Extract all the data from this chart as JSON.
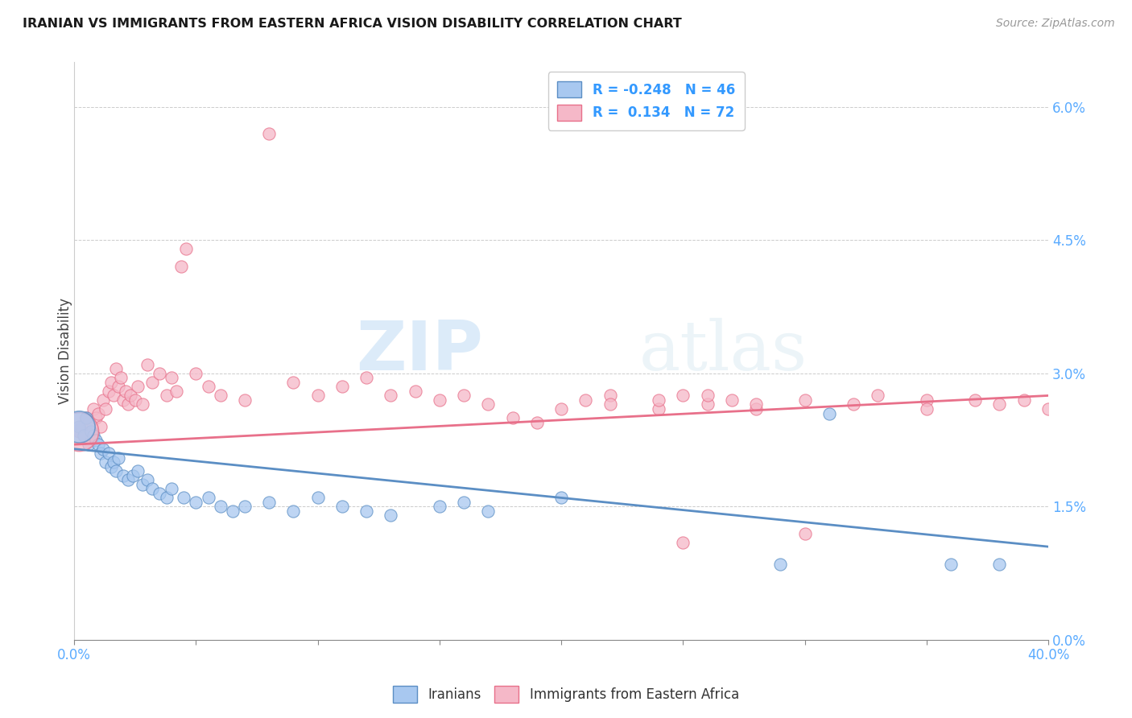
{
  "title": "IRANIAN VS IMMIGRANTS FROM EASTERN AFRICA VISION DISABILITY CORRELATION CHART",
  "source": "Source: ZipAtlas.com",
  "ylabel": "Vision Disability",
  "ytick_vals": [
    0.0,
    1.5,
    3.0,
    4.5,
    6.0
  ],
  "xtick_vals": [
    0.0,
    5.0,
    10.0,
    15.0,
    20.0,
    25.0,
    30.0,
    35.0,
    40.0
  ],
  "xlim": [
    0.0,
    40.0
  ],
  "ylim": [
    0.0,
    6.5
  ],
  "legend_iranians_R": "-0.248",
  "legend_iranians_N": "46",
  "legend_eastern_africa_R": "0.134",
  "legend_eastern_africa_N": "72",
  "color_iranians": "#a8c8f0",
  "color_eastern_africa": "#f5b8c8",
  "color_iranians_line": "#5b8ec4",
  "color_eastern_africa_line": "#e8708a",
  "color_title": "#1a1a1a",
  "color_source": "#999999",
  "color_axis_labels": "#5aabff",
  "background": "#ffffff",
  "watermark_zip": "ZIP",
  "watermark_atlas": "atlas",
  "iranians_x": [
    0.2,
    0.4,
    0.5,
    0.6,
    0.7,
    0.8,
    0.9,
    1.0,
    1.1,
    1.2,
    1.3,
    1.4,
    1.5,
    1.6,
    1.7,
    1.8,
    2.0,
    2.2,
    2.4,
    2.6,
    2.8,
    3.0,
    3.2,
    3.5,
    3.8,
    4.0,
    4.5,
    5.0,
    5.5,
    6.0,
    6.5,
    7.0,
    8.0,
    9.0,
    10.0,
    11.0,
    12.0,
    13.0,
    15.0,
    16.0,
    17.0,
    20.0,
    29.0,
    31.0,
    36.0,
    38.0
  ],
  "iranians_y": [
    2.4,
    2.3,
    2.5,
    2.2,
    2.35,
    2.3,
    2.25,
    2.2,
    2.1,
    2.15,
    2.0,
    2.1,
    1.95,
    2.0,
    1.9,
    2.05,
    1.85,
    1.8,
    1.85,
    1.9,
    1.75,
    1.8,
    1.7,
    1.65,
    1.6,
    1.7,
    1.6,
    1.55,
    1.6,
    1.5,
    1.45,
    1.5,
    1.55,
    1.45,
    1.6,
    1.5,
    1.45,
    1.4,
    1.5,
    1.55,
    1.45,
    1.6,
    0.85,
    2.55,
    0.85,
    0.85
  ],
  "eastern_africa_x": [
    0.2,
    0.3,
    0.4,
    0.5,
    0.6,
    0.7,
    0.8,
    0.9,
    1.0,
    1.1,
    1.2,
    1.3,
    1.4,
    1.5,
    1.6,
    1.7,
    1.8,
    1.9,
    2.0,
    2.1,
    2.2,
    2.3,
    2.5,
    2.6,
    2.8,
    3.0,
    3.2,
    3.5,
    3.8,
    4.0,
    4.2,
    4.4,
    4.6,
    5.0,
    5.5,
    6.0,
    7.0,
    8.0,
    9.0,
    10.0,
    11.0,
    12.0,
    13.0,
    14.0,
    15.0,
    16.0,
    17.0,
    18.0,
    19.0,
    20.0,
    21.0,
    22.0,
    24.0,
    25.0,
    26.0,
    27.0,
    28.0,
    30.0,
    32.0,
    33.0,
    35.0,
    37.0,
    38.0,
    39.0,
    40.0,
    22.0,
    24.0,
    25.0,
    26.0,
    28.0,
    30.0,
    35.0
  ],
  "eastern_africa_y": [
    2.35,
    2.4,
    2.3,
    2.5,
    2.45,
    2.3,
    2.6,
    2.5,
    2.55,
    2.4,
    2.7,
    2.6,
    2.8,
    2.9,
    2.75,
    3.05,
    2.85,
    2.95,
    2.7,
    2.8,
    2.65,
    2.75,
    2.7,
    2.85,
    2.65,
    3.1,
    2.9,
    3.0,
    2.75,
    2.95,
    2.8,
    4.2,
    4.4,
    3.0,
    2.85,
    2.75,
    2.7,
    5.7,
    2.9,
    2.75,
    2.85,
    2.95,
    2.75,
    2.8,
    2.7,
    2.75,
    2.65,
    2.5,
    2.45,
    2.6,
    2.7,
    2.75,
    2.6,
    2.75,
    2.65,
    2.7,
    2.6,
    1.2,
    2.65,
    2.75,
    2.7,
    2.7,
    2.65,
    2.7,
    2.6,
    2.65,
    2.7,
    1.1,
    2.75,
    2.65,
    2.7,
    2.6
  ],
  "iranians_sizes_base": 120,
  "eastern_africa_sizes_base": 120,
  "big_dot_iran_x": 0.2,
  "big_dot_iran_y": 2.4,
  "big_dot_iran_size": 800,
  "big_dot_ea_x": 0.2,
  "big_dot_ea_y": 2.35,
  "big_dot_ea_size": 1200
}
